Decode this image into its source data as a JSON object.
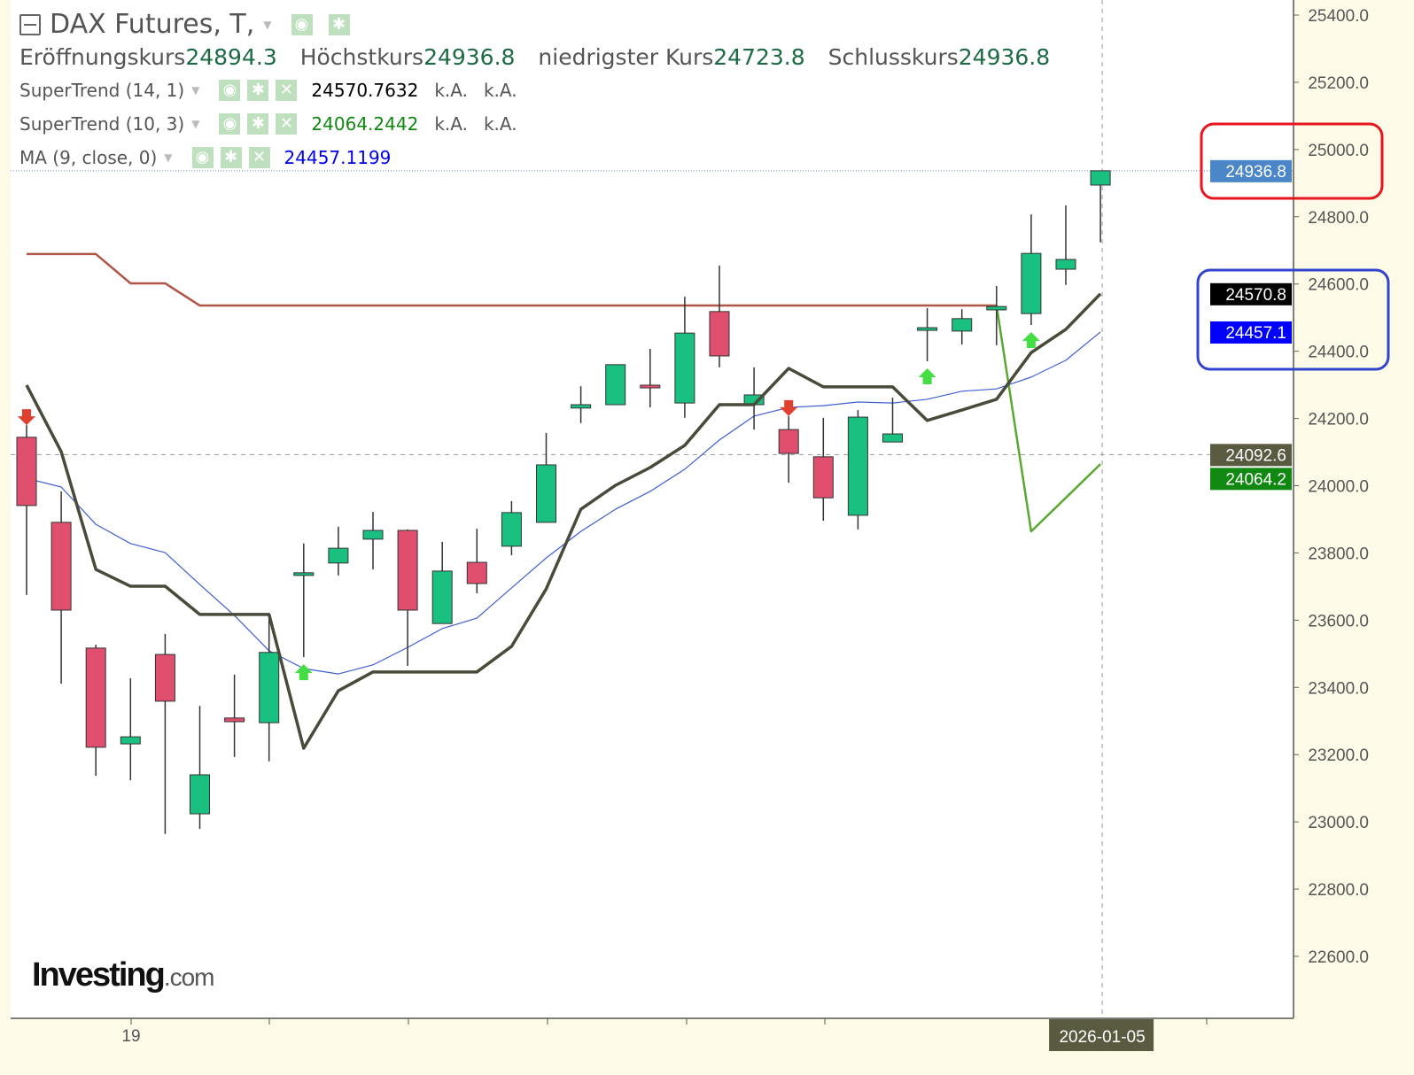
{
  "header": {
    "title": "DAX Futures, T,",
    "ohlc": [
      {
        "label": "Eröffnungskurs",
        "value": "24894.3"
      },
      {
        "label": "Höchstkurs",
        "value": "24936.8"
      },
      {
        "label": "niedrigster Kurs",
        "value": "24723.8"
      },
      {
        "label": "Schlusskurs",
        "value": "24936.8"
      }
    ]
  },
  "indicators": [
    {
      "name": "SuperTrend (14, 1)",
      "value": "24570.7632",
      "extra1": "k.A.",
      "extra2": "k.A.",
      "color": "#000000"
    },
    {
      "name": "SuperTrend (10, 3)",
      "value": "24064.2442",
      "extra1": "k.A.",
      "extra2": "k.A.",
      "color": "#118811"
    },
    {
      "name": "MA (9, close, 0)",
      "value": "24457.1199",
      "color": "#0000ee"
    }
  ],
  "logo": {
    "main": "Investing",
    "suffix": ".com"
  },
  "chart_data": {
    "type": "candlestick",
    "ylim": [
      22500,
      25450
    ],
    "y_ticks": [
      25400,
      25200,
      25000,
      24800,
      24600,
      24400,
      24200,
      24000,
      23800,
      23600,
      23400,
      23200,
      23000,
      22800,
      22600
    ],
    "x_tick_labels": [
      "19"
    ],
    "crosshair": {
      "date": "2026-01-05",
      "price": "24092.6"
    },
    "candles": [
      [
        24144,
        24180,
        23675,
        23941
      ],
      [
        23891,
        23983,
        23411,
        23630
      ],
      [
        23517,
        23527,
        23137,
        23222
      ],
      [
        23232,
        23427,
        23124,
        23253
      ],
      [
        23498,
        23559,
        22964,
        23359
      ],
      [
        23024,
        23345,
        22979,
        23140
      ],
      [
        23309,
        23438,
        23193,
        23298
      ],
      [
        23295,
        23619,
        23180,
        23504
      ],
      [
        23735,
        23828,
        23490,
        23741
      ],
      [
        23770,
        23878,
        23733,
        23814
      ],
      [
        23841,
        23922,
        23751,
        23867
      ],
      [
        23867,
        23870,
        23464,
        23630
      ],
      [
        23590,
        23833,
        23590,
        23746
      ],
      [
        23772,
        23872,
        23680,
        23709
      ],
      [
        23820,
        23954,
        23793,
        23920
      ],
      [
        23891,
        24157,
        23891,
        24062
      ],
      [
        24231,
        24296,
        24186,
        24241
      ],
      [
        24241,
        24360,
        24241,
        24360
      ],
      [
        24299,
        24407,
        24233,
        24291
      ],
      [
        24246,
        24562,
        24202,
        24454
      ],
      [
        24518,
        24655,
        24352,
        24386
      ],
      [
        24241,
        24352,
        24167,
        24270
      ],
      [
        24167,
        24207,
        24009,
        24096
      ],
      [
        24086,
        24202,
        23896,
        23964
      ],
      [
        23912,
        24225,
        23870,
        24204
      ],
      [
        24130,
        24262,
        24130,
        24154
      ],
      [
        24465,
        24528,
        24370,
        24470
      ],
      [
        24460,
        24525,
        24420,
        24497
      ],
      [
        24523,
        24594,
        24418,
        24533
      ],
      [
        24512,
        24807,
        24478,
        24691
      ],
      [
        24644,
        24834,
        24597,
        24673
      ],
      [
        24894.3,
        24936.8,
        24723.8,
        24936.8
      ]
    ],
    "supertrend_14_1": [
      24299,
      24101,
      23751,
      23701,
      23701,
      23617,
      23617,
      23617,
      23219,
      23390,
      23446,
      23446,
      23446,
      23446,
      23522,
      23693,
      23930,
      24001,
      24054,
      24120,
      24241,
      24241,
      24349,
      24294,
      24294,
      24294,
      24194,
      24225,
      24257,
      24396,
      24465,
      24570.8
    ],
    "supertrend_10_3_down": [
      24689,
      24689,
      24689,
      24602,
      24602,
      24536,
      24536,
      24536,
      24536,
      24536,
      24536,
      24536,
      24536,
      24536,
      24536,
      24536,
      24536,
      24536,
      24536,
      24536,
      24536,
      24536,
      24536,
      24536,
      24536,
      24536,
      24536,
      24536,
      24536
    ],
    "supertrend_10_3_up": {
      "start_index": 28,
      "values": [
        24536,
        23864,
        23964,
        24064.2
      ]
    },
    "ma_9": [
      24022,
      23996,
      23885,
      23828,
      23801,
      23706,
      23614,
      23509,
      23456,
      23440,
      23467,
      23519,
      23575,
      23606,
      23696,
      23785,
      23864,
      23930,
      23983,
      24049,
      24136,
      24207,
      24233,
      24238,
      24249,
      24246,
      24257,
      24281,
      24288,
      24323,
      24373,
      24457.1
    ],
    "signals": [
      {
        "index": 0,
        "dir": "down"
      },
      {
        "index": 22,
        "dir": "down"
      },
      {
        "index": 8,
        "dir": "up"
      },
      {
        "index": 26,
        "dir": "up"
      },
      {
        "index": 29,
        "dir": "up"
      }
    ],
    "price_labels": [
      {
        "text": "24936.8",
        "value": 24936.8,
        "bg": "#4a86c8"
      },
      {
        "text": "24570.8",
        "value": 24570.8,
        "bg": "#000000"
      },
      {
        "text": "24457.1",
        "value": 24457.1,
        "bg": "#0000ff"
      },
      {
        "text": "24064.2",
        "value": 24064.2,
        "bg": "#118811"
      },
      {
        "text": "24092.6",
        "value": 24092.6,
        "bg": "#5a5a40"
      }
    ],
    "colors": {
      "up": "#19c07f",
      "down": "#e0506e",
      "st14": "#4a4a3a",
      "st10_down": "#b05545",
      "st10_up": "#5aa832",
      "ma": "#3f5fd0"
    }
  }
}
